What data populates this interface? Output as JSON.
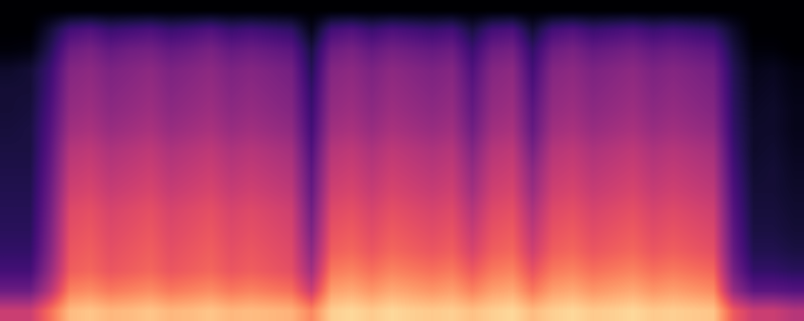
{
  "chart_data": {
    "type": "heatmap",
    "tick_labels": false,
    "cell_range": [
      0,
      1
    ],
    "cells": [
      [
        0,
        0,
        0,
        0,
        0,
        0,
        0,
        0,
        0,
        0,
        0,
        0,
        0,
        0,
        0,
        0,
        0,
        0,
        0,
        0,
        0,
        0,
        0,
        0,
        0,
        0,
        0,
        0,
        0,
        0,
        0,
        0,
        0,
        0,
        0,
        0,
        0,
        0,
        0,
        0
      ],
      [
        0,
        0,
        0.1,
        0.22,
        0.25,
        0.2,
        0.22,
        0.24,
        0.2,
        0.22,
        0.25,
        0.2,
        0.22,
        0.2,
        0.18,
        0.05,
        0.22,
        0.25,
        0.2,
        0.24,
        0.22,
        0.2,
        0.22,
        0.12,
        0.22,
        0.24,
        0.1,
        0.22,
        0.25,
        0.2,
        0.22,
        0.24,
        0.2,
        0.22,
        0.2,
        0.18,
        0.08,
        0,
        0,
        0
      ],
      [
        0.02,
        0.03,
        0.15,
        0.32,
        0.35,
        0.3,
        0.33,
        0.34,
        0.3,
        0.32,
        0.35,
        0.3,
        0.32,
        0.3,
        0.28,
        0.12,
        0.32,
        0.35,
        0.3,
        0.34,
        0.32,
        0.3,
        0.32,
        0.2,
        0.32,
        0.34,
        0.18,
        0.32,
        0.35,
        0.3,
        0.32,
        0.34,
        0.3,
        0.32,
        0.3,
        0.28,
        0.12,
        0.02,
        0.02,
        0
      ],
      [
        0.08,
        0.1,
        0.2,
        0.38,
        0.4,
        0.36,
        0.38,
        0.4,
        0.36,
        0.38,
        0.4,
        0.36,
        0.38,
        0.36,
        0.34,
        0.15,
        0.38,
        0.4,
        0.36,
        0.4,
        0.38,
        0.36,
        0.38,
        0.25,
        0.38,
        0.4,
        0.22,
        0.38,
        0.4,
        0.36,
        0.38,
        0.4,
        0.36,
        0.38,
        0.36,
        0.34,
        0.15,
        0.05,
        0.06,
        0.03
      ],
      [
        0.1,
        0.1,
        0.22,
        0.4,
        0.42,
        0.38,
        0.4,
        0.42,
        0.38,
        0.4,
        0.42,
        0.38,
        0.4,
        0.38,
        0.36,
        0.18,
        0.4,
        0.42,
        0.38,
        0.42,
        0.4,
        0.38,
        0.4,
        0.28,
        0.4,
        0.42,
        0.25,
        0.4,
        0.42,
        0.38,
        0.4,
        0.42,
        0.38,
        0.4,
        0.38,
        0.36,
        0.16,
        0.06,
        0.07,
        0.04
      ],
      [
        0.1,
        0.11,
        0.24,
        0.42,
        0.44,
        0.4,
        0.42,
        0.44,
        0.4,
        0.42,
        0.44,
        0.4,
        0.42,
        0.4,
        0.38,
        0.2,
        0.42,
        0.44,
        0.4,
        0.44,
        0.42,
        0.4,
        0.42,
        0.3,
        0.42,
        0.44,
        0.28,
        0.42,
        0.44,
        0.4,
        0.42,
        0.44,
        0.4,
        0.42,
        0.4,
        0.38,
        0.17,
        0.07,
        0.08,
        0.05
      ],
      [
        0.11,
        0.12,
        0.26,
        0.45,
        0.47,
        0.43,
        0.45,
        0.47,
        0.43,
        0.45,
        0.47,
        0.43,
        0.45,
        0.43,
        0.41,
        0.22,
        0.45,
        0.47,
        0.43,
        0.47,
        0.45,
        0.43,
        0.45,
        0.33,
        0.45,
        0.47,
        0.3,
        0.45,
        0.47,
        0.43,
        0.45,
        0.47,
        0.43,
        0.45,
        0.43,
        0.41,
        0.18,
        0.08,
        0.08,
        0.05
      ],
      [
        0.12,
        0.12,
        0.28,
        0.5,
        0.52,
        0.48,
        0.5,
        0.52,
        0.48,
        0.5,
        0.52,
        0.48,
        0.5,
        0.48,
        0.46,
        0.25,
        0.5,
        0.52,
        0.48,
        0.52,
        0.5,
        0.48,
        0.5,
        0.38,
        0.5,
        0.52,
        0.35,
        0.5,
        0.52,
        0.48,
        0.5,
        0.52,
        0.48,
        0.5,
        0.48,
        0.46,
        0.2,
        0.08,
        0.09,
        0.06
      ],
      [
        0.13,
        0.13,
        0.3,
        0.53,
        0.55,
        0.51,
        0.53,
        0.55,
        0.51,
        0.53,
        0.55,
        0.51,
        0.53,
        0.51,
        0.49,
        0.28,
        0.53,
        0.55,
        0.51,
        0.55,
        0.53,
        0.51,
        0.53,
        0.42,
        0.53,
        0.55,
        0.4,
        0.53,
        0.55,
        0.51,
        0.53,
        0.55,
        0.51,
        0.53,
        0.51,
        0.49,
        0.22,
        0.09,
        0.1,
        0.07
      ],
      [
        0.14,
        0.14,
        0.32,
        0.56,
        0.58,
        0.54,
        0.56,
        0.58,
        0.54,
        0.56,
        0.58,
        0.54,
        0.56,
        0.54,
        0.52,
        0.3,
        0.56,
        0.58,
        0.54,
        0.58,
        0.56,
        0.54,
        0.56,
        0.45,
        0.56,
        0.58,
        0.43,
        0.56,
        0.58,
        0.54,
        0.56,
        0.58,
        0.54,
        0.56,
        0.54,
        0.52,
        0.24,
        0.1,
        0.1,
        0.08
      ],
      [
        0.15,
        0.15,
        0.34,
        0.6,
        0.62,
        0.58,
        0.6,
        0.62,
        0.58,
        0.6,
        0.62,
        0.58,
        0.6,
        0.58,
        0.56,
        0.33,
        0.6,
        0.62,
        0.58,
        0.62,
        0.6,
        0.58,
        0.6,
        0.5,
        0.6,
        0.62,
        0.48,
        0.6,
        0.62,
        0.58,
        0.6,
        0.62,
        0.58,
        0.6,
        0.58,
        0.56,
        0.26,
        0.11,
        0.11,
        0.09
      ],
      [
        0.16,
        0.16,
        0.36,
        0.62,
        0.64,
        0.6,
        0.62,
        0.64,
        0.6,
        0.62,
        0.64,
        0.6,
        0.62,
        0.6,
        0.58,
        0.36,
        0.63,
        0.65,
        0.61,
        0.65,
        0.63,
        0.61,
        0.63,
        0.54,
        0.63,
        0.65,
        0.52,
        0.63,
        0.65,
        0.61,
        0.63,
        0.65,
        0.61,
        0.63,
        0.61,
        0.59,
        0.28,
        0.12,
        0.12,
        0.1
      ],
      [
        0.18,
        0.18,
        0.38,
        0.64,
        0.66,
        0.62,
        0.64,
        0.66,
        0.62,
        0.64,
        0.66,
        0.62,
        0.64,
        0.62,
        0.6,
        0.4,
        0.66,
        0.68,
        0.64,
        0.68,
        0.66,
        0.64,
        0.66,
        0.58,
        0.66,
        0.68,
        0.56,
        0.66,
        0.68,
        0.64,
        0.66,
        0.68,
        0.64,
        0.66,
        0.64,
        0.62,
        0.3,
        0.14,
        0.14,
        0.12
      ],
      [
        0.22,
        0.22,
        0.42,
        0.66,
        0.68,
        0.64,
        0.66,
        0.68,
        0.64,
        0.66,
        0.68,
        0.64,
        0.66,
        0.64,
        0.62,
        0.45,
        0.72,
        0.74,
        0.7,
        0.74,
        0.72,
        0.7,
        0.72,
        0.65,
        0.72,
        0.74,
        0.63,
        0.72,
        0.74,
        0.7,
        0.72,
        0.74,
        0.7,
        0.72,
        0.7,
        0.68,
        0.34,
        0.18,
        0.18,
        0.16
      ],
      [
        0.32,
        0.32,
        0.5,
        0.74,
        0.76,
        0.72,
        0.74,
        0.76,
        0.72,
        0.74,
        0.76,
        0.72,
        0.74,
        0.72,
        0.7,
        0.55,
        0.8,
        0.82,
        0.78,
        0.82,
        0.8,
        0.78,
        0.8,
        0.74,
        0.8,
        0.82,
        0.72,
        0.8,
        0.82,
        0.78,
        0.8,
        0.82,
        0.78,
        0.8,
        0.78,
        0.76,
        0.42,
        0.28,
        0.28,
        0.26
      ],
      [
        0.55,
        0.55,
        0.7,
        0.86,
        0.88,
        0.85,
        0.86,
        0.88,
        0.85,
        0.86,
        0.88,
        0.85,
        0.86,
        0.85,
        0.84,
        0.75,
        0.9,
        0.92,
        0.89,
        0.92,
        0.9,
        0.89,
        0.9,
        0.87,
        0.9,
        0.92,
        0.86,
        0.9,
        0.92,
        0.89,
        0.9,
        0.92,
        0.89,
        0.9,
        0.89,
        0.88,
        0.65,
        0.55,
        0.55,
        0.5
      ]
    ]
  }
}
